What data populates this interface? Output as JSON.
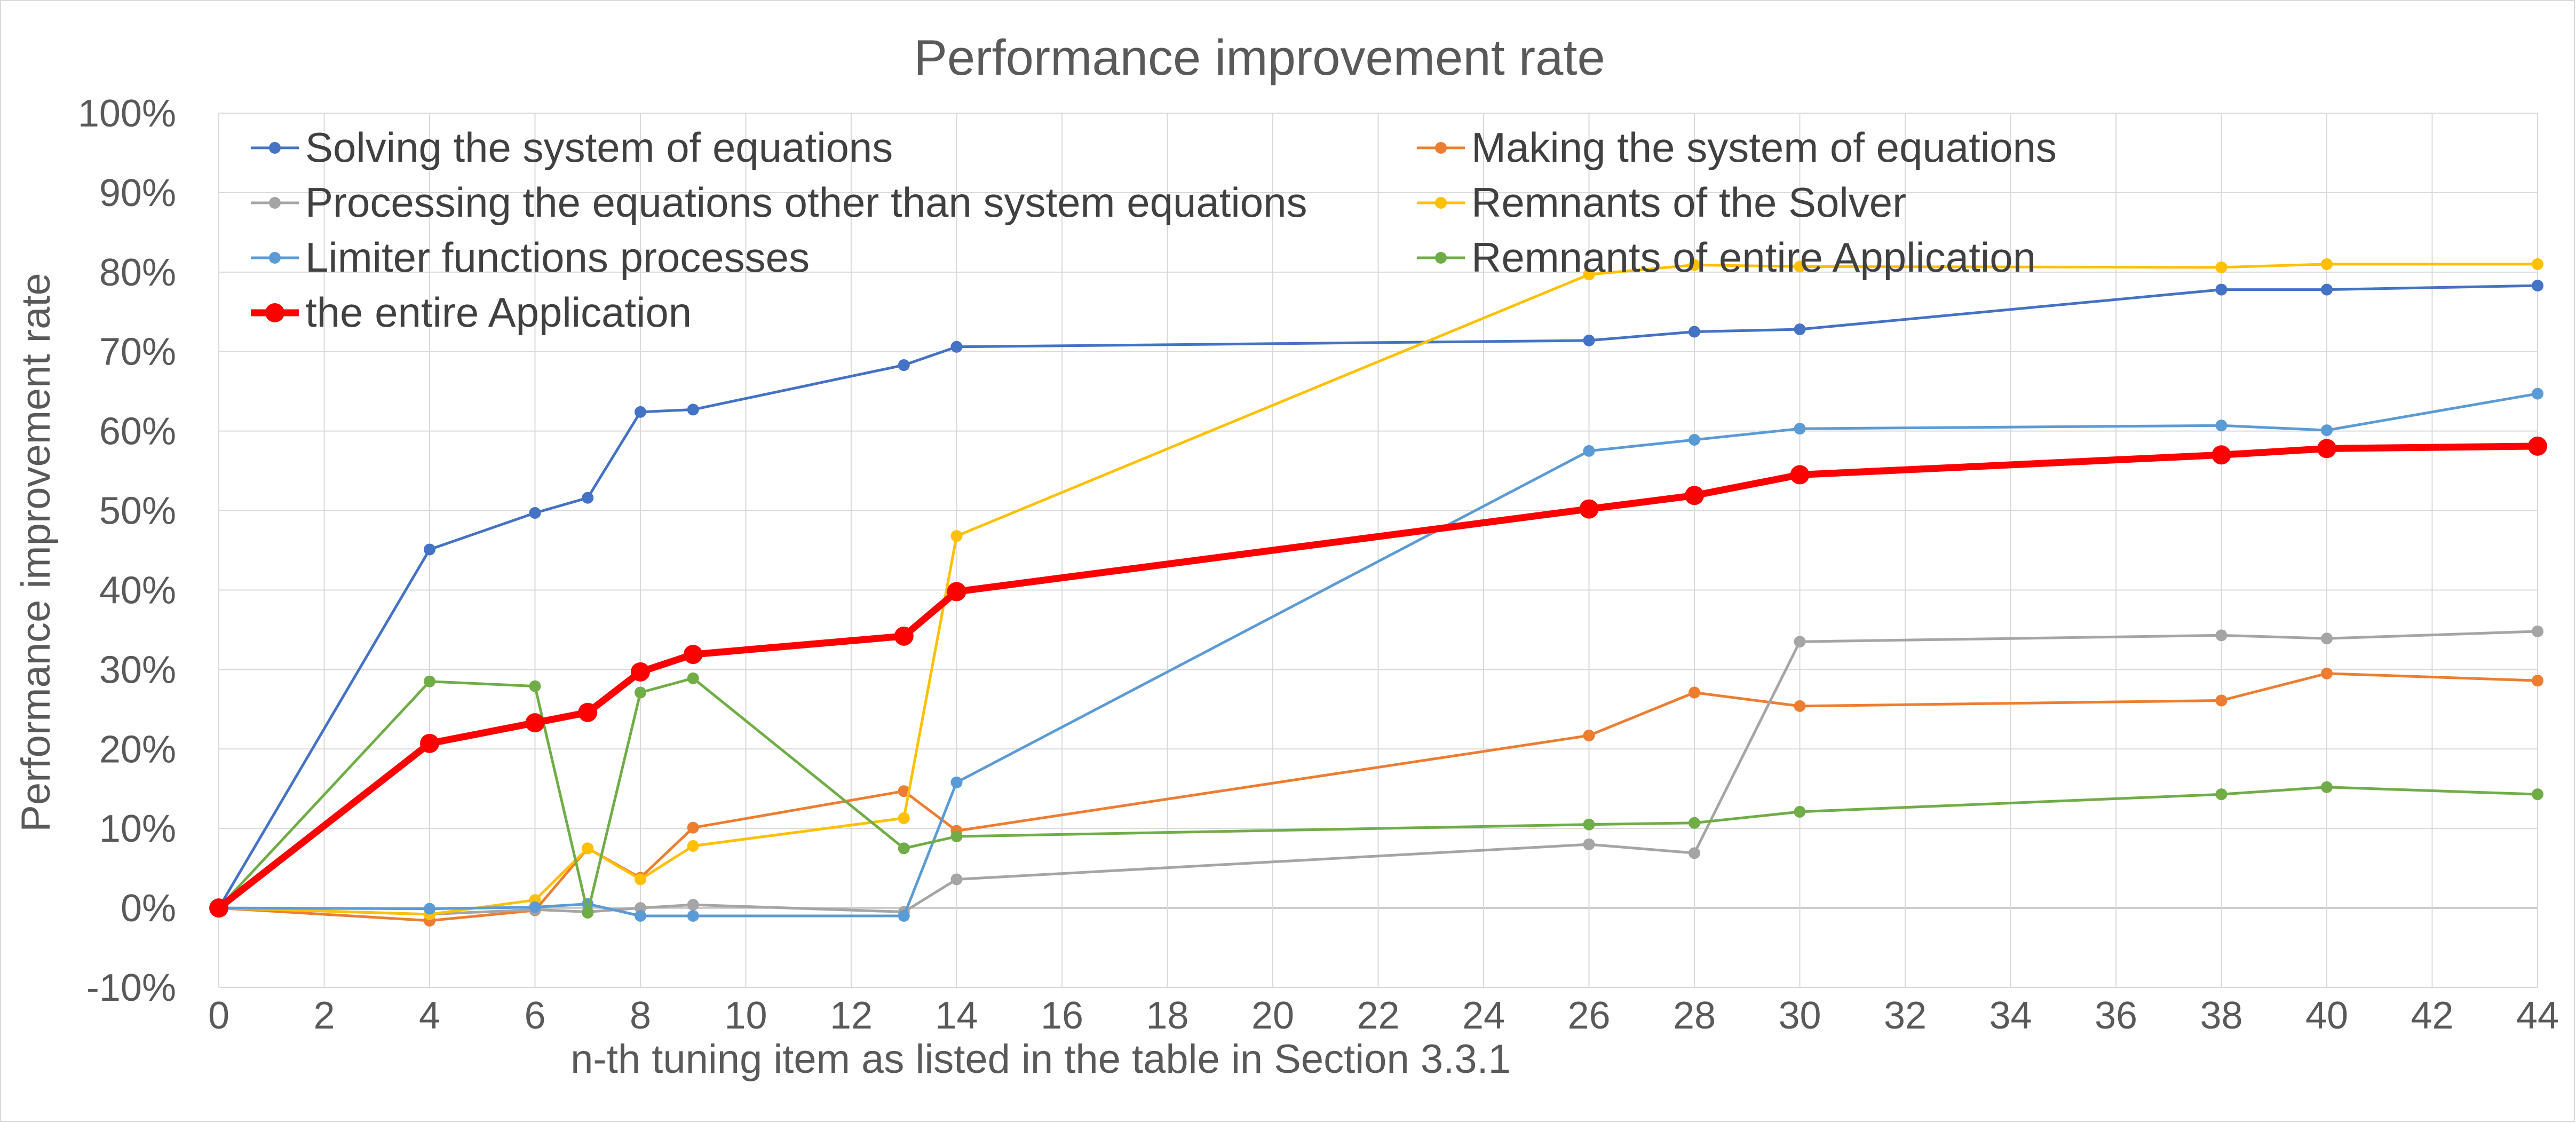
{
  "chart_data": {
    "type": "line",
    "title": "Performance improvement rate",
    "xlabel": "n-th tuning item as listed in the table in Section 3.3.1",
    "ylabel": "Performance improvement rate",
    "x": [
      0,
      4,
      6,
      7,
      8,
      9,
      13,
      14,
      26,
      28,
      30,
      38,
      40,
      44
    ],
    "xlim": [
      0,
      44
    ],
    "ylim": [
      -10,
      100
    ],
    "x_ticks": [
      "0",
      "2",
      "4",
      "6",
      "8",
      "10",
      "12",
      "14",
      "16",
      "18",
      "20",
      "22",
      "24",
      "26",
      "28",
      "30",
      "32",
      "34",
      "36",
      "38",
      "40",
      "42",
      "44"
    ],
    "y_ticks": [
      "-10%",
      "0%",
      "10%",
      "20%",
      "30%",
      "40%",
      "50%",
      "60%",
      "70%",
      "80%",
      "90%",
      "100%"
    ],
    "y_unit": "%",
    "grid": true,
    "legend_position": "top",
    "series": [
      {
        "name": "Solving the system of equations",
        "color": "#4472c4",
        "values": [
          0,
          45.1,
          49.7,
          51.6,
          62.4,
          62.7,
          68.3,
          70.6,
          71.4,
          72.5,
          72.8,
          77.8,
          77.8,
          78.3
        ]
      },
      {
        "name": "Making the system of equations",
        "color": "#ed7d31",
        "values": [
          0,
          -1.6,
          -0.3,
          7.5,
          3.8,
          10.1,
          14.7,
          9.7,
          21.7,
          27.1,
          25.4,
          26.1,
          29.5,
          28.6
        ]
      },
      {
        "name": "Processing the equations other than system equations",
        "color": "#a5a5a5",
        "values": [
          0,
          -0.8,
          -0.2,
          -0.5,
          0,
          0.4,
          -0.5,
          3.6,
          8.0,
          6.9,
          33.5,
          34.3,
          33.9,
          34.8
        ]
      },
      {
        "name": "Remnants of the Solver",
        "color": "#ffc000",
        "values": [
          0,
          -0.8,
          1.0,
          7.5,
          3.6,
          7.8,
          11.3,
          46.8,
          79.7,
          80.9,
          80.7,
          80.6,
          81.0,
          81.0
        ]
      },
      {
        "name": "Limiter functions processes",
        "color": "#5b9bd5",
        "values": [
          0,
          -0.1,
          0.1,
          0.5,
          -1.0,
          -1.0,
          -1.0,
          15.8,
          57.5,
          58.9,
          60.3,
          60.7,
          60.1,
          64.7
        ]
      },
      {
        "name": "Remnants of entire Application",
        "color": "#70ad47",
        "values": [
          0,
          28.5,
          27.9,
          -0.6,
          27.1,
          28.9,
          7.5,
          9.0,
          10.5,
          10.7,
          12.1,
          14.3,
          15.2,
          14.3
        ]
      },
      {
        "name": "the entire Application",
        "color": "#ff0000",
        "bold": true,
        "values": [
          0,
          20.7,
          23.3,
          24.6,
          29.7,
          31.9,
          34.2,
          39.8,
          50.2,
          51.9,
          54.5,
          57.0,
          57.8,
          58.1
        ]
      }
    ]
  }
}
